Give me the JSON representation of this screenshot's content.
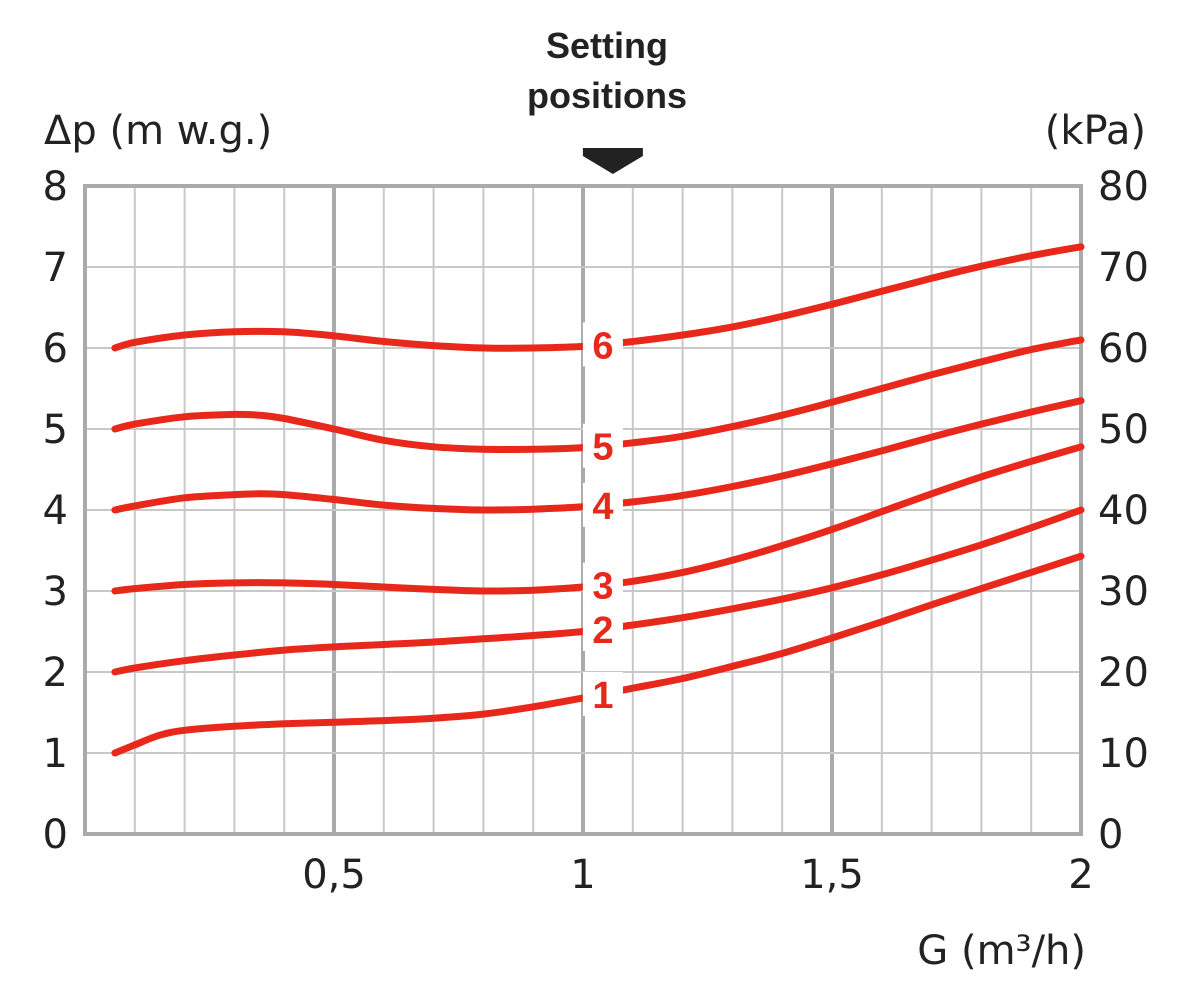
{
  "chart_data": {
    "type": "line",
    "annotation": [
      "Setting",
      "positions"
    ],
    "ylabel_left": "Δp (m w.g.)",
    "ylabel_right": "(kPa)",
    "xlabel": "G (m³/h)",
    "xlim": [
      0,
      2
    ],
    "ylim": [
      0,
      8
    ],
    "ylim_right": [
      0,
      80
    ],
    "x_ticks": [
      {
        "value": 0.5,
        "label": "0,5"
      },
      {
        "value": 1,
        "label": "1"
      },
      {
        "value": 1.5,
        "label": "1,5"
      },
      {
        "value": 2,
        "label": "2"
      }
    ],
    "y_ticks": [
      {
        "value": 0,
        "label": "0"
      },
      {
        "value": 1,
        "label": "1"
      },
      {
        "value": 2,
        "label": "2"
      },
      {
        "value": 3,
        "label": "3"
      },
      {
        "value": 4,
        "label": "4"
      },
      {
        "value": 5,
        "label": "5"
      },
      {
        "value": 6,
        "label": "6"
      },
      {
        "value": 7,
        "label": "7"
      },
      {
        "value": 8,
        "label": "8"
      }
    ],
    "y_ticks_right": [
      {
        "value": 0,
        "label": "0"
      },
      {
        "value": 1,
        "label": "10"
      },
      {
        "value": 2,
        "label": "20"
      },
      {
        "value": 3,
        "label": "30"
      },
      {
        "value": 4,
        "label": "40"
      },
      {
        "value": 5,
        "label": "50"
      },
      {
        "value": 6,
        "label": "60"
      },
      {
        "value": 7,
        "label": "70"
      },
      {
        "value": 8,
        "label": "80"
      }
    ],
    "minor_grid_x_step": 0.1,
    "major_grid_x_step": 0.5,
    "grid": true,
    "line_color": "#e8281b",
    "grid_color": "#c8c8c8",
    "major_grid_color": "#aaaaaa",
    "arrow_x": 1.06,
    "series": [
      {
        "name": "1",
        "label_x": 1.04,
        "x": [
          0.06,
          0.1,
          0.15,
          0.2,
          0.3,
          0.4,
          0.5,
          0.6,
          0.7,
          0.8,
          0.9,
          1.0,
          1.1,
          1.2,
          1.3,
          1.4,
          1.5,
          1.6,
          1.7,
          1.8,
          1.9,
          2.0
        ],
        "y": [
          1.0,
          1.1,
          1.22,
          1.28,
          1.33,
          1.36,
          1.38,
          1.4,
          1.43,
          1.48,
          1.57,
          1.68,
          1.8,
          1.92,
          2.07,
          2.23,
          2.42,
          2.62,
          2.83,
          3.03,
          3.23,
          3.43
        ]
      },
      {
        "name": "2",
        "label_x": 1.04,
        "x": [
          0.06,
          0.1,
          0.2,
          0.3,
          0.4,
          0.5,
          0.6,
          0.7,
          0.8,
          0.9,
          1.0,
          1.1,
          1.2,
          1.3,
          1.4,
          1.5,
          1.6,
          1.7,
          1.8,
          1.9,
          2.0
        ],
        "y": [
          2.0,
          2.05,
          2.14,
          2.21,
          2.27,
          2.31,
          2.34,
          2.37,
          2.41,
          2.45,
          2.5,
          2.58,
          2.67,
          2.78,
          2.9,
          3.04,
          3.2,
          3.38,
          3.57,
          3.78,
          4.0
        ]
      },
      {
        "name": "3",
        "label_x": 1.04,
        "x": [
          0.06,
          0.1,
          0.2,
          0.3,
          0.4,
          0.5,
          0.6,
          0.7,
          0.8,
          0.9,
          1.0,
          1.1,
          1.2,
          1.3,
          1.4,
          1.5,
          1.6,
          1.7,
          1.8,
          1.9,
          2.0
        ],
        "y": [
          3.0,
          3.03,
          3.08,
          3.1,
          3.1,
          3.08,
          3.05,
          3.02,
          3.0,
          3.01,
          3.05,
          3.12,
          3.23,
          3.38,
          3.56,
          3.76,
          3.98,
          4.2,
          4.41,
          4.6,
          4.78
        ]
      },
      {
        "name": "4",
        "label_x": 1.04,
        "x": [
          0.06,
          0.1,
          0.2,
          0.3,
          0.35,
          0.4,
          0.5,
          0.6,
          0.7,
          0.8,
          0.9,
          1.0,
          1.1,
          1.2,
          1.3,
          1.4,
          1.5,
          1.6,
          1.7,
          1.8,
          1.9,
          2.0
        ],
        "y": [
          4.0,
          4.05,
          4.15,
          4.19,
          4.2,
          4.19,
          4.13,
          4.06,
          4.02,
          4.0,
          4.01,
          4.04,
          4.1,
          4.18,
          4.29,
          4.42,
          4.57,
          4.73,
          4.9,
          5.06,
          5.21,
          5.35
        ]
      },
      {
        "name": "5",
        "label_x": 1.04,
        "x": [
          0.06,
          0.1,
          0.2,
          0.3,
          0.35,
          0.4,
          0.5,
          0.6,
          0.7,
          0.8,
          0.9,
          1.0,
          1.1,
          1.2,
          1.3,
          1.4,
          1.5,
          1.6,
          1.7,
          1.8,
          1.9,
          2.0
        ],
        "y": [
          5.0,
          5.06,
          5.15,
          5.18,
          5.17,
          5.13,
          5.0,
          4.86,
          4.78,
          4.75,
          4.75,
          4.77,
          4.83,
          4.91,
          5.03,
          5.17,
          5.33,
          5.5,
          5.67,
          5.83,
          5.98,
          6.1
        ]
      },
      {
        "name": "6",
        "label_x": 1.04,
        "x": [
          0.06,
          0.1,
          0.2,
          0.3,
          0.4,
          0.5,
          0.6,
          0.7,
          0.8,
          0.9,
          1.0,
          1.1,
          1.2,
          1.3,
          1.4,
          1.5,
          1.6,
          1.7,
          1.8,
          1.9,
          2.0
        ],
        "y": [
          6.0,
          6.07,
          6.16,
          6.2,
          6.2,
          6.15,
          6.08,
          6.03,
          6.0,
          6.0,
          6.02,
          6.08,
          6.16,
          6.26,
          6.39,
          6.54,
          6.7,
          6.86,
          7.01,
          7.14,
          7.25
        ]
      }
    ]
  }
}
